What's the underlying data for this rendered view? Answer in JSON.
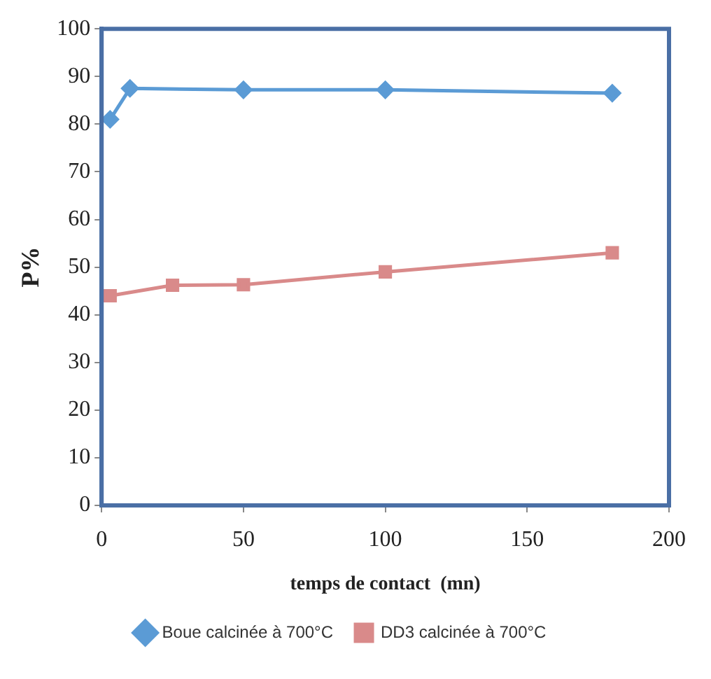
{
  "chart_data": {
    "type": "line",
    "xlabel": "temps de contact  (mn)",
    "ylabel": "P%",
    "xlim": [
      0,
      200
    ],
    "xticks": [
      0,
      50,
      100,
      150,
      200
    ],
    "ylim": [
      0,
      100
    ],
    "yticks": [
      0,
      10,
      20,
      30,
      40,
      50,
      60,
      70,
      80,
      90,
      100
    ],
    "grid": false,
    "legend": "bottom",
    "series": [
      {
        "name": "Boue calcinée à 700°C",
        "color": "#5b9bd5",
        "marker": "diamond",
        "x": [
          3,
          10,
          50,
          100,
          180
        ],
        "values": [
          81,
          87.5,
          87.2,
          87.2,
          86.5
        ]
      },
      {
        "name": "DD3 calcinée à 700°C",
        "color": "#d98a8a",
        "marker": "square",
        "x": [
          3,
          25,
          50,
          100,
          180
        ],
        "values": [
          44,
          46.2,
          46.3,
          49,
          53
        ]
      }
    ]
  }
}
